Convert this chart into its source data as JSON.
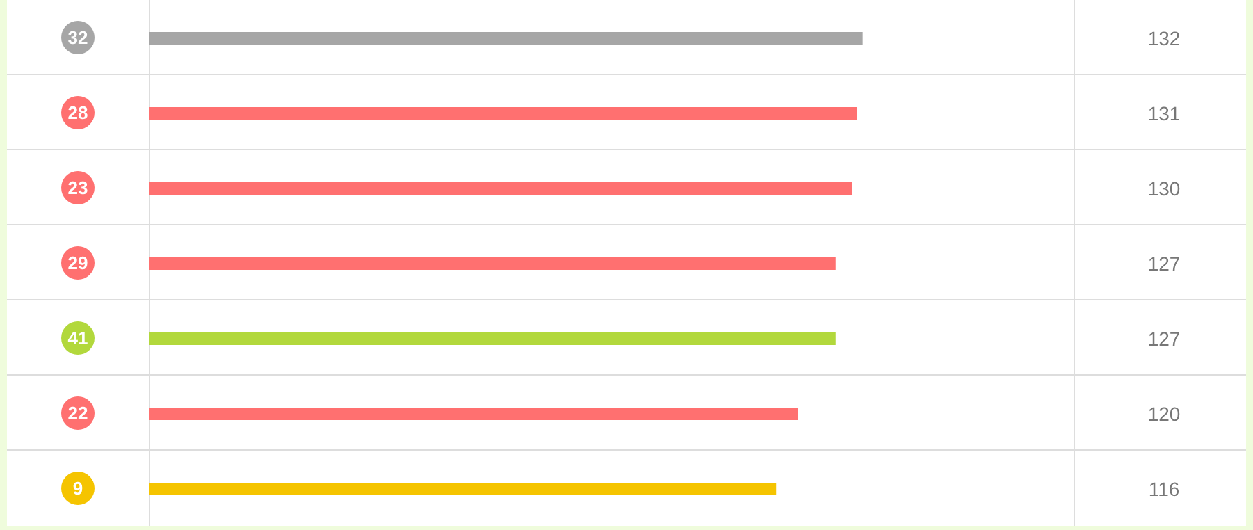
{
  "chart_data": {
    "type": "bar",
    "orientation": "horizontal",
    "categories": [
      "32",
      "28",
      "23",
      "29",
      "41",
      "22",
      "9"
    ],
    "values": [
      132,
      131,
      130,
      127,
      127,
      120,
      116
    ],
    "colors": [
      "#a6a6a6",
      "#ff7070",
      "#ff7070",
      "#ff7070",
      "#b2d83c",
      "#ff7070",
      "#f5c400"
    ],
    "xlim": [
      0,
      171
    ],
    "data_labels": true,
    "tick_labels": "y"
  }
}
